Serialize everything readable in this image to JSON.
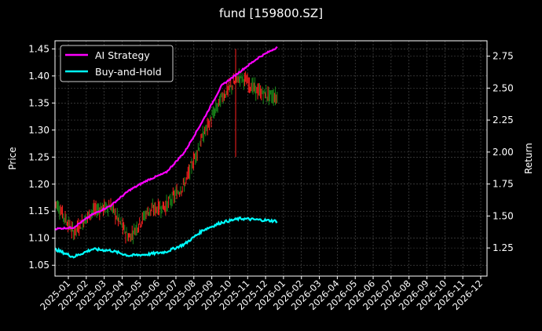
{
  "chart_data": {
    "type": "line",
    "title": "fund [159800.SZ]",
    "xlabel": "",
    "ylabel": "Price",
    "ylabel_right": "Return",
    "ylim": [
      1.03,
      1.465
    ],
    "ylim_right": [
      1.03,
      2.87
    ],
    "yticks": [
      "1.05",
      "1.10",
      "1.15",
      "1.20",
      "1.25",
      "1.30",
      "1.35",
      "1.40",
      "1.45"
    ],
    "yticks_right": [
      "1.25",
      "1.50",
      "1.75",
      "2.00",
      "2.25",
      "2.50",
      "2.75"
    ],
    "categories": [
      "2025-01",
      "2025-02",
      "2025-03",
      "2025-04",
      "2025-05",
      "2025-06",
      "2025-07",
      "2025-08",
      "2025-09",
      "2025-10",
      "2025-11",
      "2025-12",
      "2026-01",
      "2026-02",
      "2026-03",
      "2026-04",
      "2026-05",
      "2026-06",
      "2026-07",
      "2026-08",
      "2026-09",
      "2026-10",
      "2026-11",
      "2026-12"
    ],
    "grid": true,
    "legend_position": "upper left",
    "legend": [
      "AI Strategy",
      "Buy-and-Hold"
    ],
    "series": [
      {
        "name": "AI Strategy",
        "axis": "right",
        "color": "#ff00ff",
        "x": [
          "2025-01",
          "2025-02",
          "2025-03",
          "2025-04",
          "2025-05",
          "2025-06",
          "2025-07",
          "2025-08",
          "2025-09",
          "2025-10",
          "2025-11",
          "2025-12",
          "2026-01"
        ],
        "values": [
          1.4,
          1.41,
          1.51,
          1.58,
          1.7,
          1.78,
          1.84,
          2.0,
          2.25,
          2.52,
          2.63,
          2.74,
          2.82
        ]
      },
      {
        "name": "Buy-and-Hold",
        "axis": "right",
        "color": "#00ffff",
        "x": [
          "2025-01",
          "2025-02",
          "2025-03",
          "2025-04",
          "2025-05",
          "2025-06",
          "2025-07",
          "2025-08",
          "2025-09",
          "2025-10",
          "2025-11",
          "2025-12",
          "2026-01"
        ],
        "values": [
          1.24,
          1.18,
          1.24,
          1.23,
          1.19,
          1.2,
          1.22,
          1.28,
          1.39,
          1.45,
          1.48,
          1.47,
          1.46
        ]
      },
      {
        "name": "Price (candles)",
        "axis": "left",
        "color_up": "#ff2020",
        "color_down": "#1a8a1a",
        "x": [
          "2025-01",
          "2025-02",
          "2025-03",
          "2025-04",
          "2025-05",
          "2025-06",
          "2025-07",
          "2025-08",
          "2025-09",
          "2025-10",
          "2025-11",
          "2025-12",
          "2026-01"
        ],
        "values": [
          1.17,
          1.11,
          1.15,
          1.16,
          1.1,
          1.15,
          1.16,
          1.2,
          1.29,
          1.36,
          1.4,
          1.37,
          1.36
        ]
      }
    ]
  }
}
